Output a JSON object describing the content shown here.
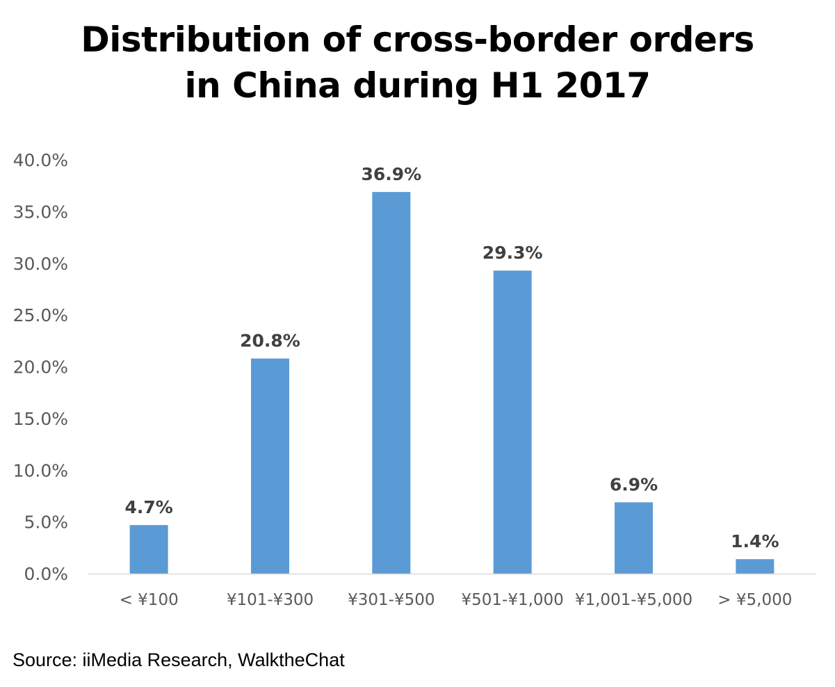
{
  "title_lines": [
    "Distribution of cross-border orders",
    "in China during H1 2017"
  ],
  "source": "Source: iiMedia Research, WalktheChat",
  "chart_data": {
    "type": "bar",
    "title": "Distribution of cross-border orders in China during H1 2017",
    "categories": [
      "< ¥100",
      "¥101-¥300",
      "¥301-¥500",
      "¥501-¥1,000",
      "¥1,001-¥5,000",
      "> ¥5,000"
    ],
    "values": [
      4.7,
      20.8,
      36.9,
      29.3,
      6.9,
      1.4
    ],
    "data_labels": [
      "4.7%",
      "20.8%",
      "36.9%",
      "29.3%",
      "6.9%",
      "1.4%"
    ],
    "yticks": [
      0,
      5,
      10,
      15,
      20,
      25,
      30,
      35,
      40
    ],
    "ytick_labels": [
      "0.0%",
      "5.0%",
      "10.0%",
      "15.0%",
      "20.0%",
      "25.0%",
      "30.0%",
      "35.0%",
      "40.0%"
    ],
    "ylim": [
      0,
      40
    ],
    "xlabel": "",
    "ylabel": "",
    "grid": false,
    "legend": "none",
    "bar_color": "#5b9bd5",
    "axis_color": "#d9d9d9",
    "tick_label_color": "#595959",
    "data_label_color": "#404040"
  }
}
